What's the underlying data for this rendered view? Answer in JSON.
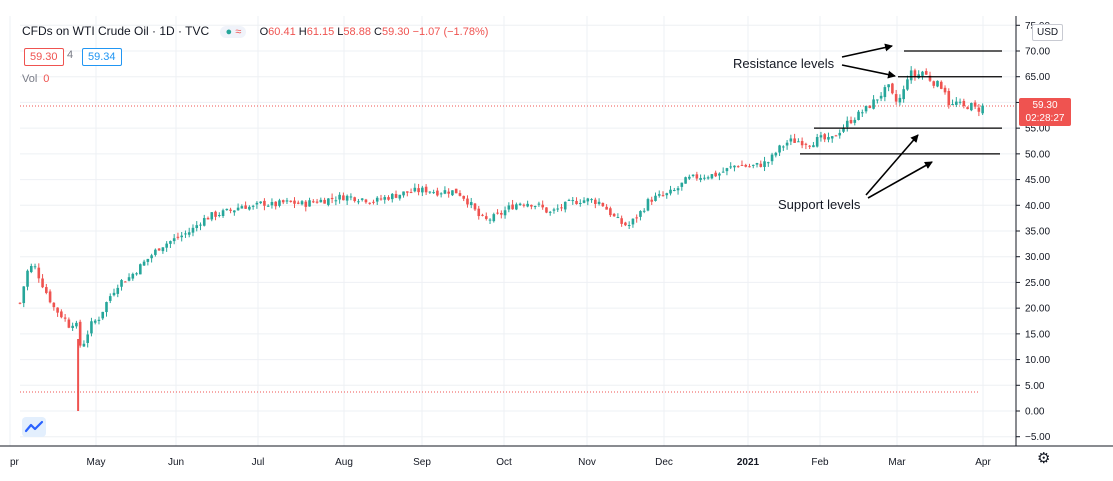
{
  "header": {
    "symbol": "CFDs on WTI Crude Oil · 1D · TVC",
    "indicator_glyph": "●",
    "wave_glyph": "≈",
    "open_label": "O",
    "open_value": "60.41",
    "high_label": "H",
    "high_value": "61.15",
    "low_label": "L",
    "low_value": "58.88",
    "close_label": "C",
    "close_value": "59.30",
    "change": "−1.07 (−1.78%)",
    "bid": "59.30",
    "spread": "4",
    "ask": "59.34",
    "vol_label": "Vol",
    "vol_value": "0"
  },
  "currency": "USD",
  "last_price": "59.30",
  "countdown": "02:28:27",
  "colors": {
    "up": "#26a69a",
    "down": "#ef5350",
    "grid": "#eef0f4",
    "axis_text": "#131722",
    "price_line": "#ef5350",
    "level_line": "#000000"
  },
  "annotations": {
    "resistance": "Resistance levels",
    "support": "Support levels"
  },
  "chart_data": {
    "type": "candlestick",
    "title": "CFDs on WTI Crude Oil · 1D · TVC",
    "xlabel": "",
    "ylabel": "",
    "ylim": [
      -5,
      75
    ],
    "yticks": [
      "−5.00",
      "0.00",
      "5.00",
      "10.00",
      "15.00",
      "20.00",
      "25.00",
      "30.00",
      "35.00",
      "40.00",
      "45.00",
      "50.00",
      "55.00",
      "60.00",
      "65.00",
      "70.00",
      "75.00"
    ],
    "x_tick_labels": [
      "Apr",
      "May",
      "Jun",
      "Jul",
      "Aug",
      "Sep",
      "Oct",
      "Nov",
      "Dec",
      "2021",
      "Feb",
      "Mar",
      "Apr"
    ],
    "resistance_levels": [
      65,
      70
    ],
    "support_levels": [
      50,
      55
    ],
    "last_close": 59.3,
    "grid": true,
    "series": [
      {
        "name": "Close",
        "values": [
          [
            0,
            21
          ],
          [
            4,
            27
          ],
          [
            8,
            28.5
          ],
          [
            14,
            24
          ],
          [
            20,
            20
          ],
          [
            26,
            18
          ],
          [
            30,
            16
          ],
          [
            32,
            19
          ],
          [
            34,
            14
          ],
          [
            36,
            12
          ],
          [
            38,
            14
          ],
          [
            42,
            17
          ],
          [
            46,
            18
          ],
          [
            52,
            22
          ],
          [
            58,
            25
          ],
          [
            64,
            26
          ],
          [
            70,
            28
          ],
          [
            76,
            30
          ],
          [
            82,
            32
          ],
          [
            88,
            33
          ],
          [
            94,
            34
          ],
          [
            100,
            35
          ],
          [
            106,
            37
          ],
          [
            112,
            38
          ],
          [
            118,
            38.5
          ],
          [
            124,
            39
          ],
          [
            130,
            40
          ],
          [
            136,
            39.5
          ],
          [
            142,
            40.5
          ],
          [
            148,
            40
          ],
          [
            154,
            40.5
          ],
          [
            160,
            40.5
          ],
          [
            166,
            40.2
          ],
          [
            172,
            40.8
          ],
          [
            178,
            41
          ],
          [
            184,
            41.4
          ],
          [
            190,
            41.7
          ],
          [
            196,
            41.5
          ],
          [
            202,
            41.2
          ],
          [
            208,
            40.8
          ],
          [
            214,
            41.5
          ],
          [
            220,
            42
          ],
          [
            226,
            42.5
          ],
          [
            232,
            42.8
          ],
          [
            238,
            43
          ],
          [
            244,
            42.6
          ],
          [
            250,
            42.8
          ],
          [
            256,
            42.6
          ],
          [
            260,
            41.5
          ],
          [
            264,
            40
          ],
          [
            268,
            38
          ],
          [
            272,
            37
          ],
          [
            276,
            37.5
          ],
          [
            280,
            38
          ],
          [
            286,
            39.5
          ],
          [
            292,
            40.5
          ],
          [
            298,
            40.5
          ],
          [
            304,
            39.8
          ],
          [
            310,
            38.5
          ],
          [
            316,
            39.5
          ],
          [
            322,
            40.5
          ],
          [
            328,
            41
          ],
          [
            334,
            41
          ],
          [
            340,
            40.5
          ],
          [
            344,
            39
          ],
          [
            348,
            37.5
          ],
          [
            352,
            36.5
          ],
          [
            356,
            36
          ],
          [
            360,
            37.5
          ],
          [
            364,
            39
          ],
          [
            368,
            41
          ],
          [
            372,
            41.5
          ],
          [
            378,
            42
          ],
          [
            384,
            43
          ],
          [
            390,
            45
          ],
          [
            396,
            45.5
          ],
          [
            402,
            45.8
          ],
          [
            408,
            46
          ],
          [
            414,
            47
          ],
          [
            420,
            48
          ],
          [
            426,
            47.5
          ],
          [
            432,
            47.8
          ],
          [
            438,
            48.5
          ],
          [
            444,
            51
          ],
          [
            450,
            52.5
          ],
          [
            456,
            52.5
          ],
          [
            462,
            52
          ],
          [
            468,
            53
          ],
          [
            474,
            52.5
          ],
          [
            478,
            54
          ],
          [
            484,
            56
          ],
          [
            490,
            57.5
          ],
          [
            496,
            59
          ],
          [
            502,
            61
          ],
          [
            508,
            63
          ],
          [
            512,
            60
          ],
          [
            516,
            61
          ],
          [
            520,
            66
          ],
          [
            524,
            65
          ],
          [
            528,
            66
          ],
          [
            534,
            64
          ],
          [
            540,
            63
          ],
          [
            542,
            62
          ],
          [
            544,
            59
          ],
          [
            548,
            60
          ],
          [
            552,
            59
          ],
          [
            556,
            59.5
          ],
          [
            560,
            58.5
          ],
          [
            564,
            59.3
          ]
        ]
      }
    ]
  }
}
